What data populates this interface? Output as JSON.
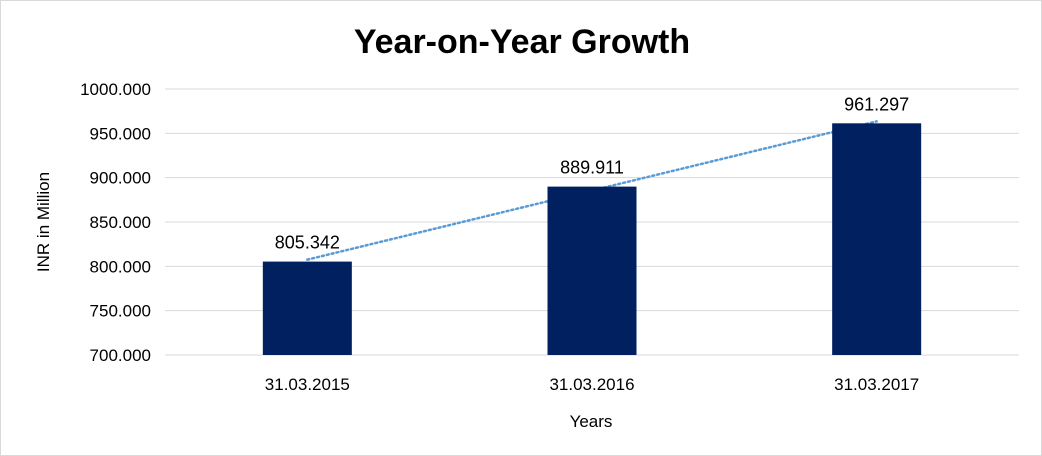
{
  "chart_data": {
    "type": "bar",
    "title": "Year-on-Year Growth",
    "xlabel": "Years",
    "ylabel": "INR in Million",
    "categories": [
      "31.03.2015",
      "31.03.2016",
      "31.03.2017"
    ],
    "values": [
      805.342,
      889.911,
      961.297
    ],
    "data_labels": [
      "805.342",
      "889.911",
      "961.297"
    ],
    "ylim": [
      700,
      1000
    ],
    "y_ticks": [
      700,
      750,
      800,
      850,
      900,
      950,
      1000
    ],
    "y_tick_labels": [
      "700.000",
      "750.000",
      "800.000",
      "850.000",
      "900.000",
      "950.000",
      "1000.000"
    ],
    "grid": true,
    "legend": "none",
    "trendline": "linear",
    "colors": {
      "bar": "#002060",
      "trendline": "#5b9bd5",
      "grid": "#d9d9d9"
    }
  }
}
